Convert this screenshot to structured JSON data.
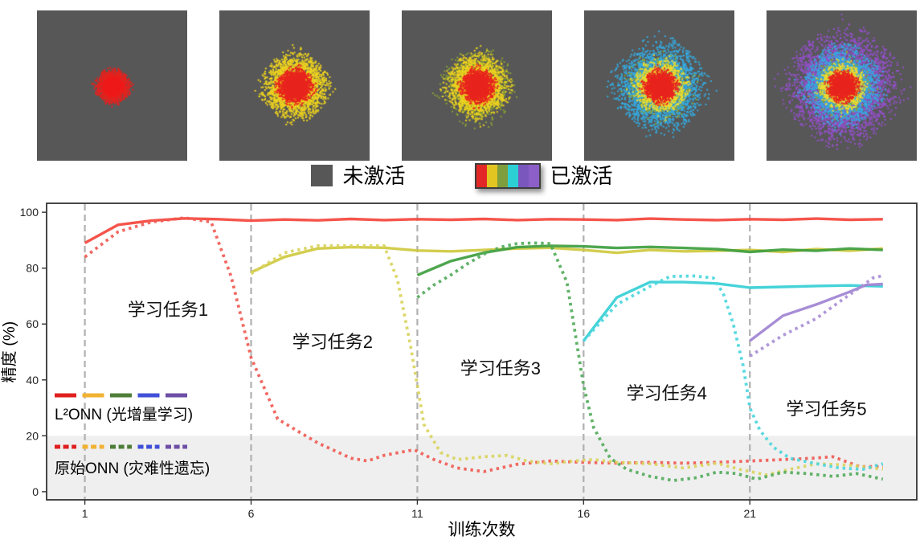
{
  "activation_legend": {
    "inactive_label": "未激活",
    "active_label": "已激活",
    "inactive_color": "#575757",
    "active_colors": [
      "#e32726",
      "#e2c521",
      "#7e9e3e",
      "#2ccfd4",
      "#7a57bd",
      "#8b5fc7"
    ]
  },
  "activation_maps": {
    "background": "#575757",
    "dot_size": 2,
    "maps": [
      {
        "name": "task1-activation",
        "layers": [
          {
            "color": "#e4231f",
            "sigma": 0.075,
            "count": 1700
          },
          {
            "color": "#ef1a1a",
            "sigma": 0.042,
            "count": 1000
          }
        ]
      },
      {
        "name": "task2-activation",
        "layers": [
          {
            "color": "#edd21f",
            "sigma": 0.145,
            "count": 2600
          },
          {
            "color": "#e8241e",
            "sigma": 0.08,
            "count": 1700
          }
        ]
      },
      {
        "name": "task3-activation",
        "layers": [
          {
            "color": "#8aa135",
            "sigma": 0.165,
            "count": 900
          },
          {
            "color": "#edd21f",
            "sigma": 0.14,
            "count": 2300
          },
          {
            "color": "#e8241e",
            "sigma": 0.078,
            "count": 1600
          }
        ]
      },
      {
        "name": "task4-activation",
        "layers": [
          {
            "color": "#35aadf",
            "sigma": 0.195,
            "count": 3400
          },
          {
            "color": "#8aa135",
            "sigma": 0.15,
            "count": 450
          },
          {
            "color": "#eedc2c",
            "sigma": 0.12,
            "count": 1600
          },
          {
            "color": "#e8241e",
            "sigma": 0.075,
            "count": 1500
          }
        ]
      },
      {
        "name": "task5-activation",
        "layers": [
          {
            "color": "#9350c8",
            "sigma": 0.245,
            "count": 4300
          },
          {
            "color": "#35aadf",
            "sigma": 0.17,
            "count": 2800
          },
          {
            "color": "#8aa135",
            "sigma": 0.135,
            "count": 350
          },
          {
            "color": "#eedc2c",
            "sigma": 0.105,
            "count": 1300
          },
          {
            "color": "#e8241e",
            "sigma": 0.07,
            "count": 1300
          }
        ]
      }
    ]
  },
  "chart_data": {
    "type": "line",
    "xlabel": "训练次数",
    "ylabel": "精度 (%)",
    "xlim": [
      -0.15,
      26.02
    ],
    "ylim": [
      -2.9,
      103.2
    ],
    "xticks": [
      1,
      6,
      11,
      16,
      21
    ],
    "yticks": [
      0,
      20,
      40,
      60,
      80,
      100
    ],
    "vlines": [
      1,
      6,
      11,
      16,
      21
    ],
    "vline_color": "#b0b0b0",
    "shaded_band": {
      "y_min": -2.9,
      "y_max": 20,
      "color": "#efefef"
    },
    "grid": false,
    "annotations": [
      {
        "text": "学习任务1",
        "x": 3.5,
        "y": 63
      },
      {
        "text": "学习任务2",
        "x": 8.45,
        "y": 51.5
      },
      {
        "text": "学习任务3",
        "x": 13.5,
        "y": 42
      },
      {
        "text": "学习任务4",
        "x": 18.5,
        "y": 33
      },
      {
        "text": "学习任务5",
        "x": 23.3,
        "y": 27.5
      }
    ],
    "legend": {
      "position": "lower-left",
      "swatch_colors": [
        "#e01f1f",
        "#f0b232",
        "#4e7e38",
        "#4150d8",
        "#6e4fa5"
      ],
      "items": [
        {
          "label": "L²ONN (光增量学习)",
          "style": "solid"
        },
        {
          "label": "原始ONN (灾难性遗忘)",
          "style": "dotted"
        }
      ]
    },
    "series": [
      {
        "name": "L2ONN-task1",
        "color": "#f4453c",
        "style": "solid",
        "points": [
          [
            1,
            89
          ],
          [
            2,
            95.5
          ],
          [
            3,
            97
          ],
          [
            4,
            97.8
          ],
          [
            5,
            97.5
          ],
          [
            6,
            97
          ],
          [
            7,
            97.4
          ],
          [
            8,
            97.1
          ],
          [
            9,
            97.6
          ],
          [
            10,
            97.2
          ],
          [
            11,
            97.5
          ],
          [
            12,
            97.3
          ],
          [
            13,
            97.6
          ],
          [
            14,
            97.2
          ],
          [
            15,
            97.5
          ],
          [
            16,
            97.4
          ],
          [
            17,
            97.2
          ],
          [
            18,
            97.7
          ],
          [
            19,
            97.4
          ],
          [
            20,
            97.2
          ],
          [
            21,
            97.5
          ],
          [
            22,
            97.3
          ],
          [
            23,
            97.7
          ],
          [
            24,
            97.3
          ],
          [
            25,
            97.5
          ]
        ]
      },
      {
        "name": "originalONN-task1",
        "color": "#f05c55",
        "style": "dotted",
        "points": [
          [
            1,
            84
          ],
          [
            2,
            93
          ],
          [
            3,
            96.5
          ],
          [
            4,
            98
          ],
          [
            4.8,
            96.5
          ],
          [
            5.4,
            77
          ],
          [
            6,
            48
          ],
          [
            6.8,
            26
          ],
          [
            7.5,
            21
          ],
          [
            8,
            17.5
          ],
          [
            9,
            12
          ],
          [
            9.5,
            11
          ],
          [
            10,
            13
          ],
          [
            10.9,
            15
          ],
          [
            11.5,
            11.5
          ],
          [
            12.2,
            8.5
          ],
          [
            13,
            7.2
          ],
          [
            14,
            9.8
          ],
          [
            15,
            11
          ],
          [
            16,
            10.5
          ],
          [
            17,
            10.2
          ],
          [
            18,
            10.5
          ],
          [
            19,
            10.2
          ],
          [
            20,
            10.5
          ],
          [
            21,
            11
          ],
          [
            22,
            11.5
          ],
          [
            22.9,
            12
          ],
          [
            23.5,
            12.5
          ],
          [
            24.3,
            9
          ],
          [
            25,
            9
          ]
        ]
      },
      {
        "name": "L2ONN-task2",
        "color": "#cfc93f",
        "style": "solid",
        "points": [
          [
            6,
            78.5
          ],
          [
            7,
            84
          ],
          [
            8,
            87
          ],
          [
            9,
            87.5
          ],
          [
            10,
            87.3
          ],
          [
            11,
            86.3
          ],
          [
            12,
            86
          ],
          [
            13,
            86.5
          ],
          [
            14,
            87
          ],
          [
            15,
            87.3
          ],
          [
            16,
            86.5
          ],
          [
            17,
            85.5
          ],
          [
            18,
            86.5
          ],
          [
            19,
            86
          ],
          [
            20,
            86.2
          ],
          [
            21,
            86.5
          ],
          [
            22,
            85.8
          ],
          [
            23,
            86.8
          ],
          [
            24,
            86.2
          ],
          [
            25,
            87
          ]
        ]
      },
      {
        "name": "originalONN-task2",
        "color": "#d9d45e",
        "style": "dotted",
        "points": [
          [
            6,
            78
          ],
          [
            7,
            85.5
          ],
          [
            8,
            88
          ],
          [
            9,
            88
          ],
          [
            10,
            88
          ],
          [
            10.4,
            76
          ],
          [
            10.8,
            52
          ],
          [
            11.2,
            24
          ],
          [
            11.7,
            14
          ],
          [
            12.2,
            11.5
          ],
          [
            13,
            12.5
          ],
          [
            13.7,
            13
          ],
          [
            14.3,
            11
          ],
          [
            15,
            10
          ],
          [
            15.7,
            11
          ],
          [
            16.3,
            11.5
          ],
          [
            17,
            10.5
          ],
          [
            18,
            10
          ],
          [
            19,
            8.5
          ],
          [
            20,
            10.2
          ],
          [
            20.7,
            8
          ],
          [
            21.5,
            6
          ],
          [
            22.2,
            8
          ],
          [
            23,
            10
          ],
          [
            24,
            9.5
          ],
          [
            25,
            8
          ]
        ]
      },
      {
        "name": "L2ONN-task3",
        "color": "#3f9e3f",
        "style": "solid",
        "points": [
          [
            11,
            77.5
          ],
          [
            12,
            82.5
          ],
          [
            13,
            85.5
          ],
          [
            14,
            87.5
          ],
          [
            15,
            88
          ],
          [
            16,
            87.8
          ],
          [
            17,
            87.2
          ],
          [
            18,
            87.6
          ],
          [
            19,
            87.2
          ],
          [
            20,
            86.8
          ],
          [
            21,
            85.8
          ],
          [
            22,
            86.6
          ],
          [
            23,
            86.2
          ],
          [
            24,
            87
          ],
          [
            25,
            86.5
          ]
        ]
      },
      {
        "name": "originalONN-task3",
        "color": "#54ab5c",
        "style": "dotted",
        "points": [
          [
            11,
            69.5
          ],
          [
            11.5,
            74
          ],
          [
            12,
            77.5
          ],
          [
            12.5,
            81.5
          ],
          [
            13,
            85
          ],
          [
            13.5,
            87.5
          ],
          [
            14,
            88.8
          ],
          [
            14.5,
            89
          ],
          [
            15,
            88.8
          ],
          [
            15.5,
            75
          ],
          [
            16,
            38
          ],
          [
            16.3,
            23
          ],
          [
            16.8,
            12
          ],
          [
            17.3,
            8
          ],
          [
            18,
            5.5
          ],
          [
            18.7,
            4
          ],
          [
            19.4,
            5
          ],
          [
            20,
            7
          ],
          [
            20.6,
            6.5
          ],
          [
            21.2,
            4.5
          ],
          [
            22,
            7
          ],
          [
            22.7,
            6.5
          ],
          [
            23.5,
            5.5
          ],
          [
            24.2,
            6.5
          ],
          [
            25,
            4.5
          ]
        ]
      },
      {
        "name": "L2ONN-task4",
        "color": "#35cfd5",
        "style": "solid",
        "points": [
          [
            16,
            54
          ],
          [
            17,
            69.5
          ],
          [
            18,
            75
          ],
          [
            19,
            75
          ],
          [
            20,
            74.5
          ],
          [
            21,
            73
          ],
          [
            22,
            73.3
          ],
          [
            23,
            73.6
          ],
          [
            24,
            73.8
          ],
          [
            25,
            73.5
          ]
        ]
      },
      {
        "name": "originalONN-task4",
        "color": "#4cd7dd",
        "style": "dotted",
        "points": [
          [
            16,
            54
          ],
          [
            17,
            67
          ],
          [
            18,
            73.5
          ],
          [
            18.6,
            77
          ],
          [
            19.3,
            77.2
          ],
          [
            19.9,
            76.5
          ],
          [
            20.2,
            71
          ],
          [
            20.5,
            60
          ],
          [
            20.8,
            45
          ],
          [
            21,
            30
          ],
          [
            21.3,
            22
          ],
          [
            21.7,
            16
          ],
          [
            22.2,
            12
          ],
          [
            23,
            10
          ],
          [
            23.7,
            8.5
          ],
          [
            24.4,
            8
          ],
          [
            25,
            10
          ]
        ]
      },
      {
        "name": "L2ONN-task5",
        "color": "#a083d2",
        "style": "solid",
        "points": [
          [
            21,
            54
          ],
          [
            22,
            63
          ],
          [
            23,
            67
          ],
          [
            24,
            71.5
          ],
          [
            24.5,
            74
          ],
          [
            25,
            74.3
          ]
        ]
      },
      {
        "name": "originalONN-task5",
        "color": "#a98fd6",
        "style": "dotted",
        "points": [
          [
            21,
            48.5
          ],
          [
            22,
            56
          ],
          [
            23,
            62
          ],
          [
            23.7,
            68
          ],
          [
            24.3,
            73
          ],
          [
            24.7,
            76.5
          ],
          [
            25,
            77.3
          ]
        ]
      }
    ]
  }
}
